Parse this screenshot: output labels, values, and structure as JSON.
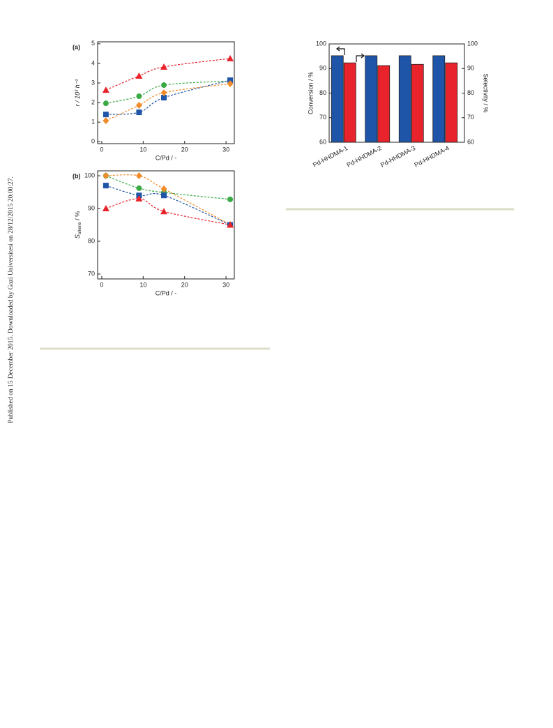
{
  "side_note": "Published on 15 December 2015. Downloaded by Gazi Universitesi on 28/12/2015 20:00:27.",
  "chart_data": [
    {
      "type": "scatter",
      "panel": "(a)",
      "xlabel": "C/Pd / -",
      "ylabel": "r / 10³ h⁻¹",
      "x": [
        1,
        9,
        15,
        31
      ],
      "xlim": [
        -1,
        32
      ],
      "xticks": [
        0,
        10,
        20,
        30
      ],
      "ylim": [
        -0.1,
        5.1
      ],
      "yticks": [
        0,
        1,
        2,
        3,
        4,
        5
      ],
      "series": [
        {
          "color": "#e8232b",
          "marker": "triangle",
          "values": [
            2.64,
            3.36,
            3.82,
            4.25
          ]
        },
        {
          "color": "#3aaa45",
          "marker": "circle",
          "values": [
            1.96,
            2.32,
            2.89,
            3.1
          ]
        },
        {
          "color": "#1f55a8",
          "marker": "square",
          "values": [
            1.39,
            1.5,
            2.25,
            3.14
          ]
        },
        {
          "color": "#f08c2c",
          "marker": "diamond",
          "values": [
            1.07,
            1.86,
            2.5,
            2.96
          ]
        }
      ]
    },
    {
      "type": "scatter",
      "panel": "(b)",
      "xlabel": "C/Pd / -",
      "ylabel": "S",
      "ylabel_sub": "alkene",
      "ylabel_unit": " / %",
      "x": [
        1,
        9,
        15,
        31
      ],
      "xlim": [
        -1,
        32
      ],
      "xticks": [
        0,
        10,
        20,
        30
      ],
      "ylim": [
        68.5,
        101.5
      ],
      "yticks": [
        70,
        80,
        90,
        100
      ],
      "series": [
        {
          "color": "#3aaa45",
          "marker": "circle",
          "values": [
            100,
            96.2,
            94.9,
            92.8
          ]
        },
        {
          "color": "#f08c2c",
          "marker": "diamond",
          "values": [
            100,
            100,
            96,
            85.1
          ]
        },
        {
          "color": "#1f55a8",
          "marker": "square",
          "values": [
            97,
            94,
            94,
            85
          ]
        },
        {
          "color": "#e8232b",
          "marker": "triangle",
          "values": [
            90,
            93,
            89.1,
            85
          ]
        }
      ]
    },
    {
      "type": "bar",
      "ylabel": "Conversion / %",
      "y2label": "Selectivity / %",
      "categories": [
        "Pd-HHDMA-1",
        "Pd-HHDMA-2",
        "Pd-HHDMA-3",
        "Pd-HHDMA-4"
      ],
      "ylim": [
        60,
        100
      ],
      "yticks": [
        60,
        70,
        80,
        90,
        100
      ],
      "y2lim": [
        60,
        100
      ],
      "y2ticks": [
        60,
        70,
        80,
        90,
        100
      ],
      "series": [
        {
          "color": "#1f55a8",
          "values": [
            95.2,
            95.2,
            95.2,
            95.2
          ]
        },
        {
          "color": "#e8232b",
          "axis": "y2",
          "values": [
            92.3,
            91.2,
            91.7,
            92.3
          ]
        }
      ]
    }
  ]
}
